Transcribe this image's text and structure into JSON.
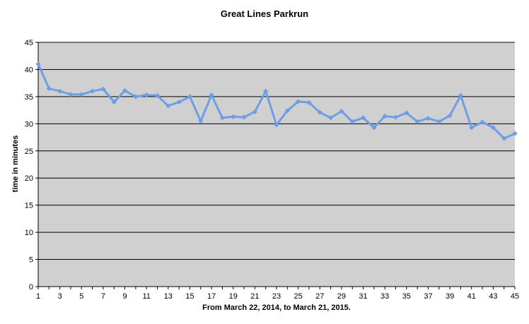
{
  "chart_data": {
    "type": "line",
    "title": "Great Lines Parkrun",
    "xlabel": "From March 22, 2014, to March 21, 2015.",
    "ylabel": "time in minutes",
    "ylim": [
      0,
      45
    ],
    "y_ticks": [
      0,
      5,
      10,
      15,
      20,
      25,
      30,
      35,
      40,
      45
    ],
    "x_ticks": [
      1,
      3,
      5,
      7,
      9,
      11,
      13,
      15,
      17,
      19,
      21,
      23,
      25,
      27,
      29,
      31,
      33,
      35,
      37,
      39,
      41,
      43,
      45
    ],
    "grid": true,
    "legend": "none",
    "colors": {
      "line": "#6e9ee6",
      "plot_bg": "#d0d0d0",
      "grid": "#000000"
    },
    "series": [
      {
        "x": [
          1,
          2,
          3,
          4,
          5,
          6,
          7,
          8,
          9,
          10,
          11,
          12,
          13,
          14,
          15,
          16,
          17,
          18,
          19,
          20,
          21,
          22,
          23,
          24,
          25,
          26,
          27,
          28,
          29,
          30,
          31,
          32,
          33,
          34,
          35,
          36,
          37,
          38,
          39,
          40,
          41,
          42,
          43,
          44,
          45
        ],
        "values": [
          41.0,
          36.5,
          36.0,
          35.4,
          35.4,
          36.0,
          36.4,
          34.0,
          36.1,
          35.0,
          35.3,
          35.2,
          33.3,
          34.0,
          35.0,
          30.5,
          35.3,
          31.1,
          31.3,
          31.2,
          32.2,
          36.0,
          29.8,
          32.4,
          34.1,
          33.9,
          32.1,
          31.1,
          32.3,
          30.4,
          31.1,
          29.3,
          31.4,
          31.2,
          32.0,
          30.4,
          31.0,
          30.4,
          31.5,
          35.2,
          29.3,
          30.3,
          29.3,
          27.3,
          28.2
        ]
      }
    ]
  }
}
